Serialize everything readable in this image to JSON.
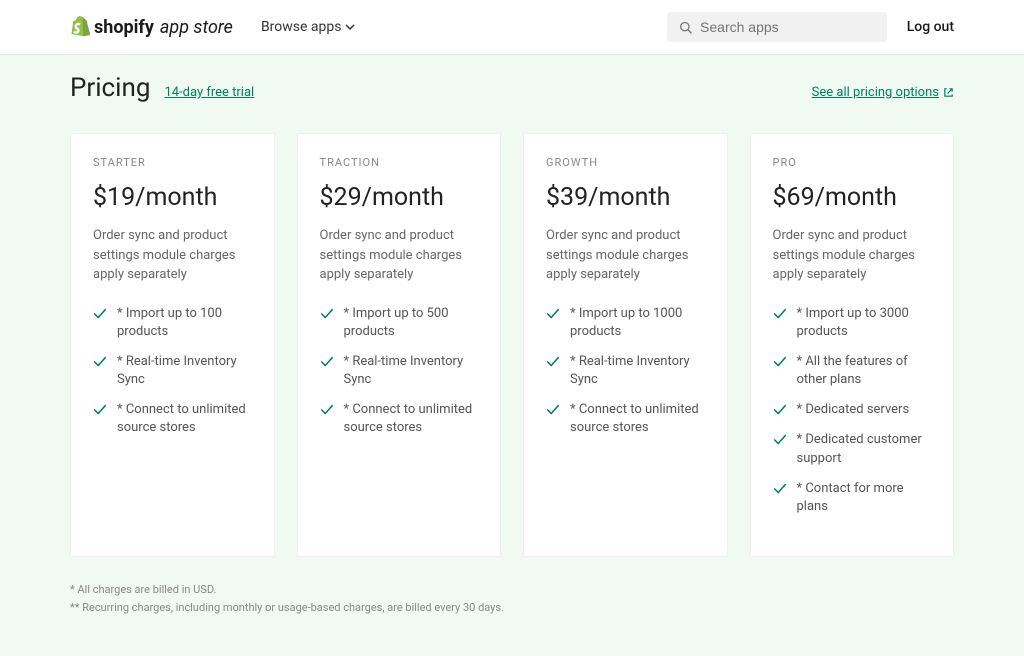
{
  "colors": {
    "accent": "#008060",
    "page_bg": "#f0faf2",
    "card_bg": "#ffffff",
    "text_muted": "#888888"
  },
  "header": {
    "logo_text": "shopify",
    "logo_suffix": "app store",
    "browse_label": "Browse apps",
    "search_placeholder": "Search apps",
    "logout_label": "Log out"
  },
  "pricing": {
    "title": "Pricing",
    "trial_text": "14-day free trial",
    "see_all_label": "See all pricing options"
  },
  "plans": [
    {
      "name": "STARTER",
      "price": "$19/month",
      "desc": "Order sync and product settings module charges apply separately",
      "features": [
        "* Import up to 100 products",
        "* Real-time Inventory Sync",
        "* Connect to unlimited source stores"
      ]
    },
    {
      "name": "TRACTION",
      "price": "$29/month",
      "desc": "Order sync and product settings module charges apply separately",
      "features": [
        "* Import up to 500 products",
        "* Real-time Inventory Sync",
        "* Connect to unlimited source stores"
      ]
    },
    {
      "name": "GROWTH",
      "price": "$39/month",
      "desc": "Order sync and product settings module charges apply separately",
      "features": [
        "* Import up to 1000 products",
        "* Real-time Inventory Sync",
        "* Connect to unlimited source stores"
      ]
    },
    {
      "name": "PRO",
      "price": "$69/month",
      "desc": "Order sync and product settings module charges apply separately",
      "features": [
        "* Import up to 3000 products",
        "* All the features of other plans",
        "* Dedicated servers",
        "* Dedicated customer support",
        "* Contact for more plans"
      ]
    }
  ],
  "footnotes": [
    "* All charges are billed in USD.",
    "** Recurring charges, including monthly or usage-based charges, are billed every 30 days."
  ]
}
